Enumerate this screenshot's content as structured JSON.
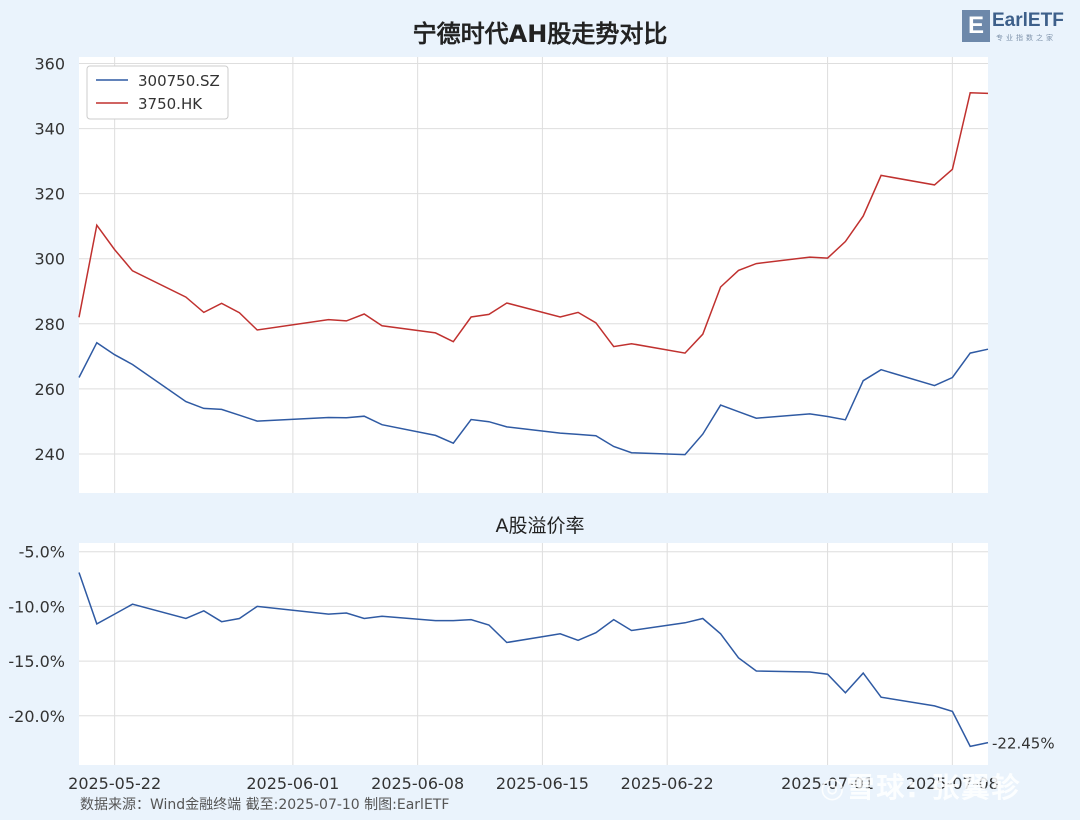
{
  "title": "宁德时代AH股走势对比",
  "logo": {
    "mark": "E",
    "name": "EarlETF",
    "tagline": "专业指数之家"
  },
  "source": "数据来源：Wind金融终端 截至:2025-07-10 制图:EarlETF",
  "watermark": "◎雪球: 张翼轸",
  "colors": {
    "a_share": "#2f5aa3",
    "h_share": "#c0312f",
    "grid": "#dedede"
  },
  "chart_data": [
    {
      "type": "line",
      "title": "宁德时代AH股走势对比",
      "ylim": [
        228,
        362
      ],
      "yticks": [
        240,
        260,
        280,
        300,
        320,
        340,
        360
      ],
      "ytick_labels": [
        "240",
        "260",
        "280",
        "300",
        "320",
        "340",
        "360"
      ],
      "grid": true,
      "legend": "top-left",
      "x": [
        "2025-05-20",
        "2025-05-21",
        "2025-05-22",
        "2025-05-23",
        "2025-05-26",
        "2025-05-27",
        "2025-05-28",
        "2025-05-29",
        "2025-05-30",
        "2025-06-03",
        "2025-06-04",
        "2025-06-05",
        "2025-06-06",
        "2025-06-09",
        "2025-06-10",
        "2025-06-11",
        "2025-06-12",
        "2025-06-13",
        "2025-06-16",
        "2025-06-17",
        "2025-06-18",
        "2025-06-19",
        "2025-06-20",
        "2025-06-23",
        "2025-06-24",
        "2025-06-25",
        "2025-06-26",
        "2025-06-27",
        "2025-06-30",
        "2025-07-01",
        "2025-07-02",
        "2025-07-03",
        "2025-07-04",
        "2025-07-07",
        "2025-07-08",
        "2025-07-09",
        "2025-07-10"
      ],
      "series": [
        {
          "name": "300750.SZ",
          "values": [
            263.5,
            274.2,
            270.5,
            267.5,
            256.1,
            254.0,
            253.7,
            251.9,
            250.1,
            251.2,
            251.1,
            251.6,
            249.0,
            245.7,
            243.3,
            250.6,
            249.9,
            248.3,
            246.4,
            246.0,
            245.6,
            242.3,
            240.4,
            239.8,
            246.1,
            255.0,
            253.0,
            251.0,
            252.3,
            251.5,
            250.5,
            262.5,
            265.9,
            261.0,
            263.5,
            271.0,
            272.2
          ]
        },
        {
          "name": "3750.HK",
          "values": [
            282.0,
            310.3,
            302.8,
            296.3,
            288.2,
            283.5,
            286.3,
            283.4,
            278.1,
            281.3,
            280.9,
            283.0,
            279.4,
            277.2,
            274.5,
            282.1,
            282.9,
            286.4,
            282.1,
            283.5,
            280.3,
            273.0,
            273.9,
            271.0,
            276.8,
            291.3,
            296.4,
            298.5,
            300.5,
            300.2,
            305.3,
            313.1,
            325.6,
            322.7,
            327.5,
            351.0,
            350.8
          ]
        }
      ],
      "xtick_labels": [
        "2025-05-22",
        "2025-06-01",
        "2025-06-08",
        "2025-06-15",
        "2025-06-22",
        "2025-07-01",
        "2025-07-08"
      ]
    },
    {
      "type": "line",
      "title": "A股溢价率",
      "ylim": [
        -24.5,
        -4.2
      ],
      "yticks": [
        -5,
        -10,
        -15,
        -20
      ],
      "ytick_labels": [
        "-5.0%",
        "-10.0%",
        "-15.0%",
        "-20.0%"
      ],
      "grid": true,
      "last_label": "-22.45%",
      "series": [
        {
          "name": "",
          "values": [
            -6.9,
            -11.6,
            -10.7,
            -9.8,
            -11.1,
            -10.4,
            -11.4,
            -11.1,
            -10.0,
            -10.7,
            -10.6,
            -11.1,
            -10.9,
            -11.3,
            -11.3,
            -11.2,
            -11.7,
            -13.3,
            -12.5,
            -13.1,
            -12.4,
            -11.2,
            -12.2,
            -11.5,
            -11.1,
            -12.5,
            -14.7,
            -15.9,
            -16.0,
            -16.2,
            -17.9,
            -16.1,
            -18.3,
            -19.1,
            -19.6,
            -22.8,
            -22.45
          ]
        }
      ],
      "xtick_labels": [
        "2025-05-22",
        "2025-06-01",
        "2025-06-08",
        "2025-06-15",
        "2025-06-22",
        "2025-07-01",
        "2025-07-08"
      ]
    }
  ]
}
